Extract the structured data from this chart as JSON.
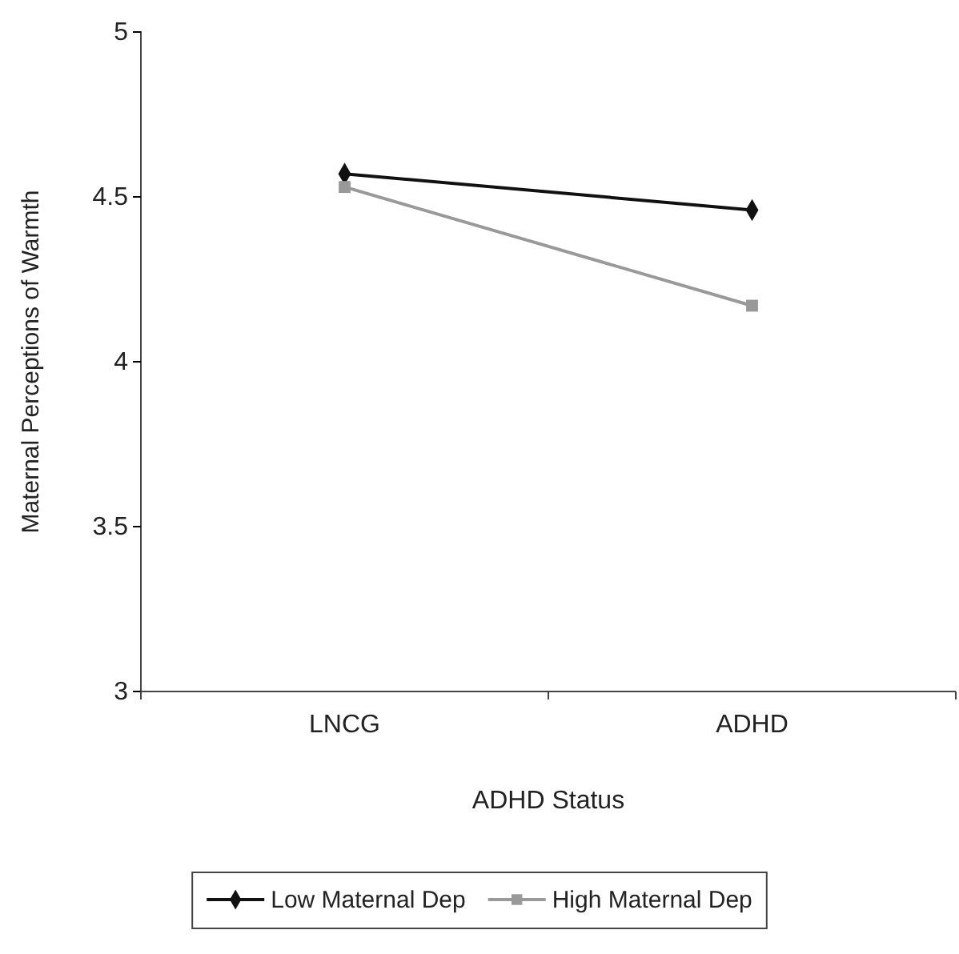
{
  "chart_data": {
    "type": "line",
    "xlabel": "ADHD Status",
    "ylabel": "Maternal Perceptions of Warmth",
    "categories": [
      "LNCG",
      "ADHD"
    ],
    "series": [
      {
        "name": "Low Maternal Dep",
        "color": "#111111",
        "marker": "diamond",
        "values": [
          4.57,
          4.46
        ]
      },
      {
        "name": "High Maternal Dep",
        "color": "#999999",
        "marker": "square",
        "values": [
          4.53,
          4.17
        ]
      }
    ],
    "ylim": [
      3,
      5
    ],
    "yticks": [
      3,
      3.5,
      4,
      4.5,
      5
    ],
    "grid": false,
    "legend": "bottom"
  }
}
